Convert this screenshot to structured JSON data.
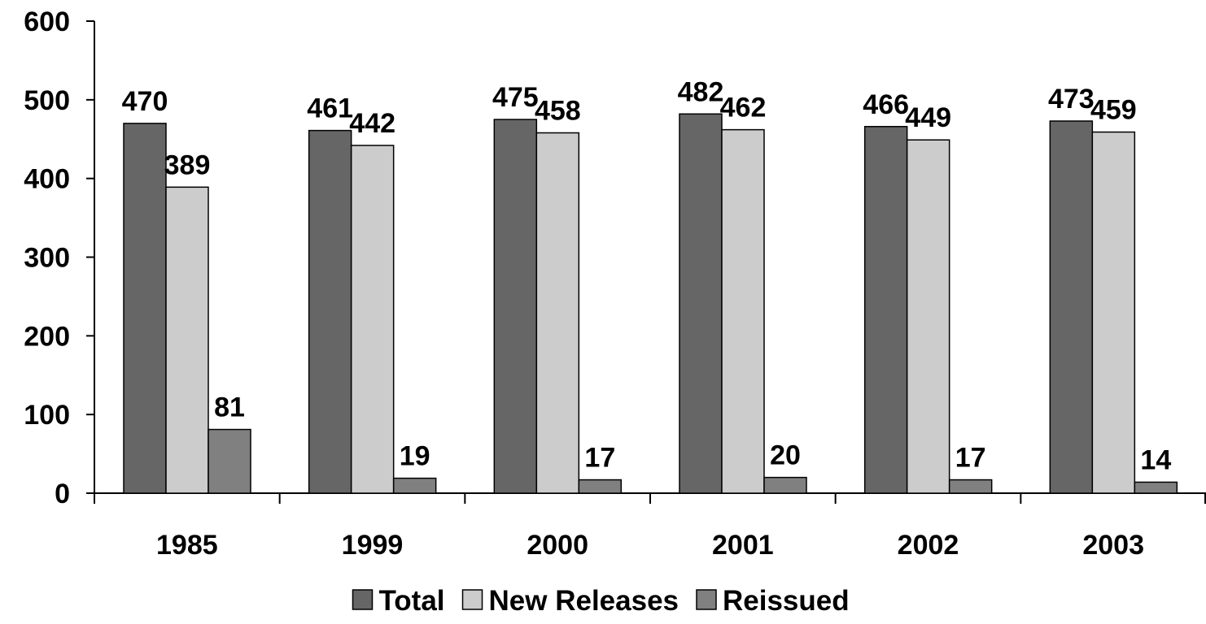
{
  "chart_data": {
    "type": "bar",
    "title": "",
    "xlabel": "",
    "ylabel": "",
    "categories": [
      "1985",
      "1999",
      "2000",
      "2001",
      "2002",
      "2003"
    ],
    "series": [
      {
        "name": "Total",
        "values": [
          470,
          461,
          475,
          482,
          466,
          473
        ],
        "color": "#666666"
      },
      {
        "name": "New Releases",
        "values": [
          389,
          442,
          458,
          462,
          449,
          459
        ],
        "color": "#cccccc"
      },
      {
        "name": "Reissued",
        "values": [
          81,
          19,
          17,
          20,
          17,
          14
        ],
        "color": "#808080"
      }
    ],
    "ylim": [
      0,
      600
    ],
    "yticks": [
      0,
      100,
      200,
      300,
      400,
      500,
      600
    ],
    "grid": false,
    "legend_position": "bottom",
    "data_labels": true
  }
}
